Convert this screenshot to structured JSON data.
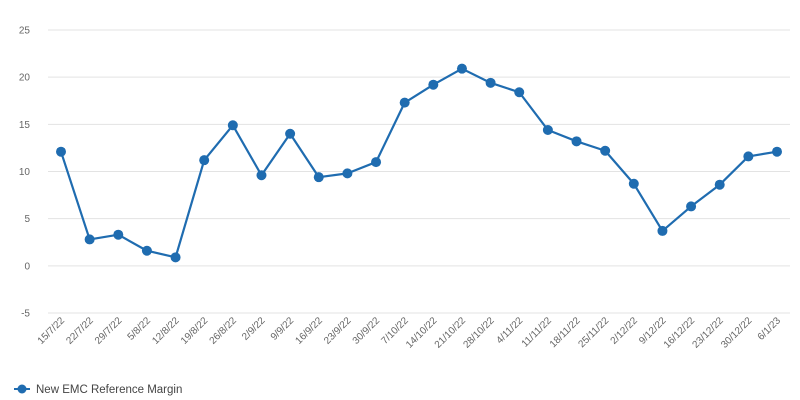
{
  "chart_data": {
    "type": "line",
    "title": "",
    "xlabel": "",
    "ylabel": "",
    "ylim": [
      -5,
      25
    ],
    "yticks": [
      -5,
      0,
      5,
      10,
      15,
      20,
      25
    ],
    "grid": true,
    "legend_placement": "bottom-left",
    "categories": [
      "15/7/22",
      "22/7/22",
      "29/7/22",
      "5/8/22",
      "12/8/22",
      "19/8/22",
      "26/8/22",
      "2/9/22",
      "9/9/22",
      "16/9/22",
      "23/9/22",
      "30/9/22",
      "7/10/22",
      "14/10/22",
      "21/10/22",
      "28/10/22",
      "4/11/22",
      "11/11/22",
      "18/11/22",
      "25/11/22",
      "2/12/22",
      "9/12/22",
      "16/12/22",
      "23/12/22",
      "30/12/22",
      "6/1/23"
    ],
    "series": [
      {
        "name": "New EMC Reference Margin",
        "color": "#1f6cb0",
        "values": [
          12.1,
          2.8,
          3.3,
          1.6,
          0.9,
          11.2,
          14.9,
          9.6,
          14.0,
          9.4,
          9.8,
          11.0,
          17.3,
          19.2,
          20.9,
          19.4,
          18.4,
          14.4,
          13.2,
          12.2,
          8.7,
          3.7,
          6.3,
          8.6,
          11.6,
          12.1
        ]
      }
    ]
  }
}
